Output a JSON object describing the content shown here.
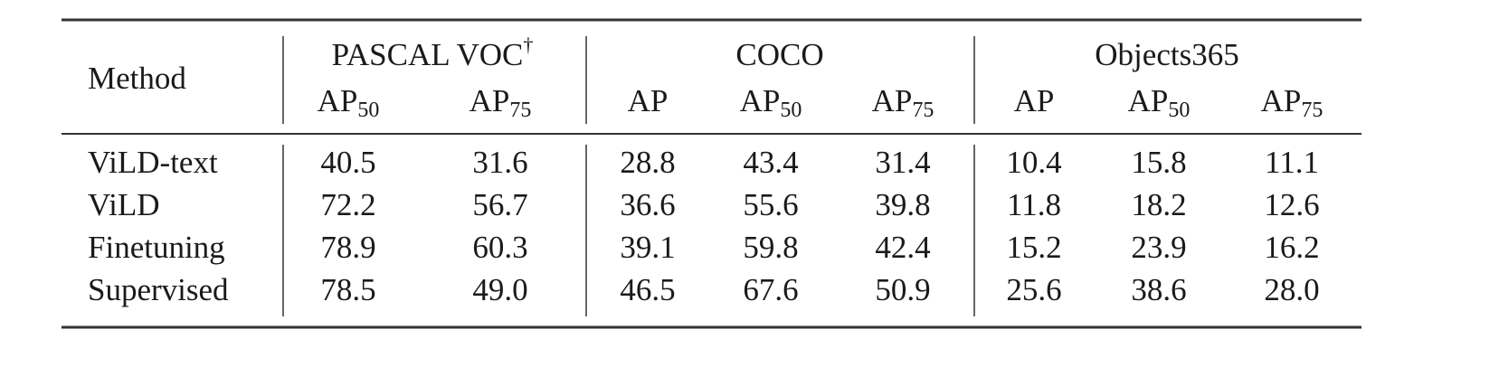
{
  "table": {
    "method_header": "Method",
    "groups": [
      {
        "text": "PASCAL VOC",
        "sup": "†",
        "columns": [
          {
            "base": "AP",
            "sub": "50"
          },
          {
            "base": "AP",
            "sub": "75"
          }
        ]
      },
      {
        "text": "COCO",
        "columns": [
          {
            "base": "AP"
          },
          {
            "base": "AP",
            "sub": "50"
          },
          {
            "base": "AP",
            "sub": "75"
          }
        ]
      },
      {
        "text": "Objects365",
        "columns": [
          {
            "base": "AP"
          },
          {
            "base": "AP",
            "sub": "50"
          },
          {
            "base": "AP",
            "sub": "75"
          }
        ]
      }
    ],
    "rows": [
      [
        "ViLD-text",
        "40.5",
        "31.6",
        "28.8",
        "43.4",
        "31.4",
        "10.4",
        "15.8",
        "11.1"
      ],
      [
        "ViLD",
        "72.2",
        "56.7",
        "36.6",
        "55.6",
        "39.8",
        "11.8",
        "18.2",
        "12.6"
      ],
      [
        "Finetuning",
        "78.9",
        "60.3",
        "39.1",
        "59.8",
        "42.4",
        "15.2",
        "23.9",
        "16.2"
      ],
      [
        "Supervised",
        "78.5",
        "49.0",
        "46.5",
        "67.6",
        "50.9",
        "25.6",
        "38.6",
        "28.0"
      ]
    ]
  }
}
